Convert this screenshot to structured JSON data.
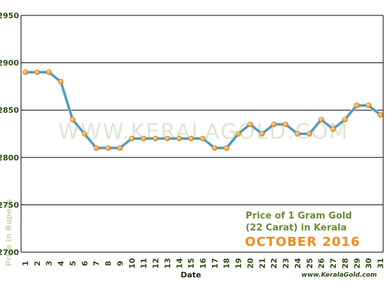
{
  "chart_data": {
    "type": "line",
    "xlabel": "Date",
    "ylabel": "Price in Rupees",
    "ylim": [
      2700,
      2950
    ],
    "yticks": [
      2700,
      2750,
      2800,
      2850,
      2900,
      2950
    ],
    "grid": "horizontal",
    "watermark": "WWW.KERALAGOLD.COM",
    "source": "www.KeralaGold.com",
    "caption": {
      "line1": "Price of 1 Gram Gold",
      "line2": "(22 Carat) in Kerala",
      "month": "OCTOBER 2016"
    },
    "categories": [
      "1",
      "2",
      "3",
      "4",
      "5",
      "6",
      "7",
      "8",
      "9",
      "10",
      "11",
      "12",
      "13",
      "14",
      "15",
      "16",
      "17",
      "18",
      "19",
      "20",
      "21",
      "22",
      "23",
      "24",
      "25",
      "26",
      "27",
      "28",
      "29",
      "30",
      "31"
    ],
    "values": [
      2890,
      2890,
      2890,
      2880,
      2840,
      2825,
      2810,
      2810,
      2810,
      2820,
      2820,
      2820,
      2820,
      2820,
      2820,
      2820,
      2810,
      2810,
      2825,
      2835,
      2825,
      2835,
      2835,
      2825,
      2825,
      2840,
      2830,
      2840,
      2855,
      2855,
      2845
    ],
    "colors": {
      "line": "#3a8fb0",
      "marker": "#f5a53c",
      "axis_text": "#2d4a10",
      "caption_text": "#6b8a3a",
      "caption_month": "#f08a1c",
      "ylabel_text": "#c8d8b0",
      "watermark": "#dde6d0"
    }
  }
}
